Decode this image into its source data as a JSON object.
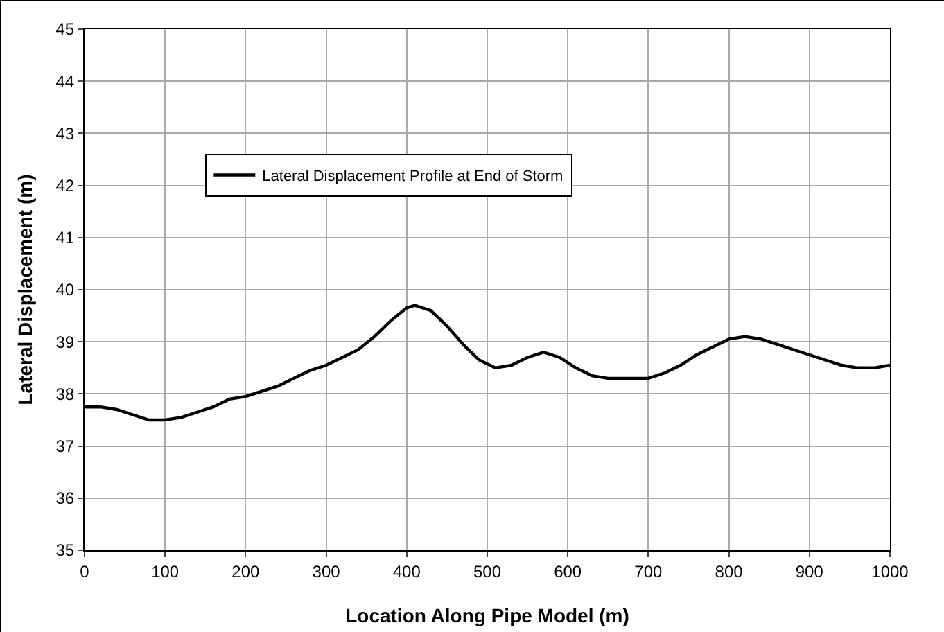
{
  "chart_data": {
    "type": "line",
    "xlabel": "Location Along Pipe Model (m)",
    "ylabel": "Lateral Displacement (m)",
    "x": [
      0,
      20,
      40,
      60,
      80,
      100,
      120,
      140,
      160,
      180,
      200,
      220,
      240,
      260,
      280,
      300,
      320,
      340,
      360,
      380,
      400,
      410,
      430,
      450,
      470,
      490,
      510,
      530,
      550,
      570,
      590,
      610,
      630,
      650,
      680,
      700,
      720,
      740,
      760,
      780,
      800,
      820,
      840,
      860,
      880,
      900,
      920,
      940,
      960,
      980,
      1000
    ],
    "series": [
      {
        "name": "Lateral Displacement Profile at End of Storm",
        "color": "#000000",
        "values": [
          37.75,
          37.75,
          37.7,
          37.6,
          37.5,
          37.5,
          37.55,
          37.65,
          37.75,
          37.9,
          37.95,
          38.05,
          38.15,
          38.3,
          38.45,
          38.55,
          38.7,
          38.85,
          39.1,
          39.4,
          39.65,
          39.7,
          39.6,
          39.3,
          38.95,
          38.65,
          38.5,
          38.55,
          38.7,
          38.8,
          38.7,
          38.5,
          38.35,
          38.3,
          38.3,
          38.3,
          38.4,
          38.55,
          38.75,
          38.9,
          39.05,
          39.1,
          39.05,
          38.95,
          38.85,
          38.75,
          38.65,
          38.55,
          38.5,
          38.5,
          38.55
        ]
      }
    ],
    "xlim": [
      0,
      1000
    ],
    "xticks": [
      0,
      100,
      200,
      300,
      400,
      500,
      600,
      700,
      800,
      900,
      1000
    ],
    "ylim": [
      35,
      45
    ],
    "yticks": [
      35,
      36,
      37,
      38,
      39,
      40,
      41,
      42,
      43,
      44,
      45
    ],
    "grid": true,
    "legend": "top left",
    "marker": "none",
    "line_style": "solid"
  }
}
